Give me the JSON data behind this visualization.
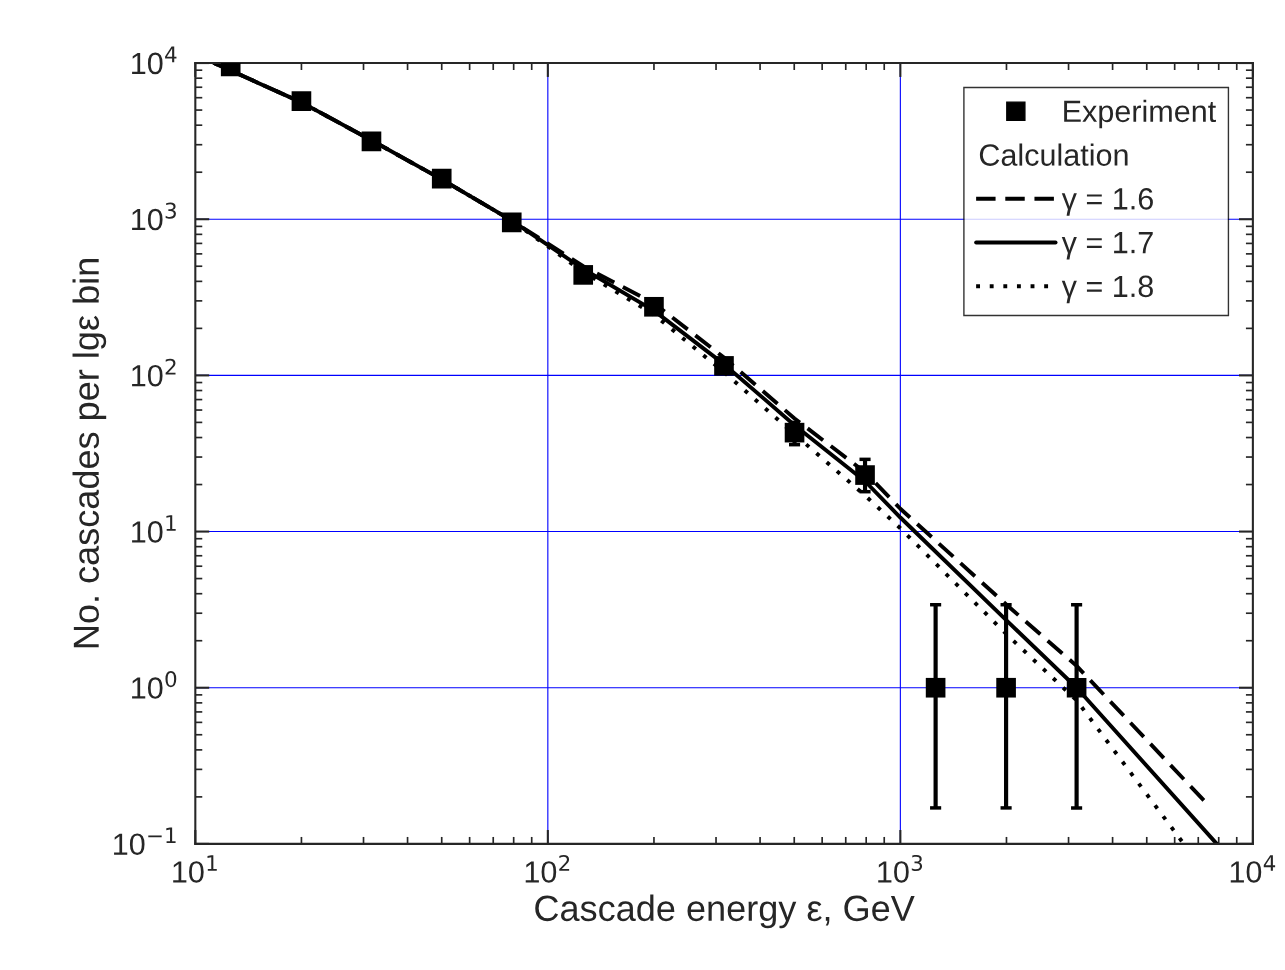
{
  "chart_data": {
    "type": "line",
    "xlabel": "Cascade energy ε, GeV",
    "ylabel": "No. cascades per lgε bin",
    "log": "xy",
    "grid": true,
    "legend": "top right",
    "xlim": [
      10,
      10000
    ],
    "ylim": [
      0.1,
      10000
    ],
    "xticks": [
      {
        "value": 10,
        "label": "10$^{1}$"
      },
      {
        "value": 100,
        "label": "10$^{2}$"
      },
      {
        "value": 1000,
        "label": "10$^{3}$"
      },
      {
        "value": 10000,
        "label": "10$^{4}$"
      }
    ],
    "yticks": [
      {
        "value": 0.1,
        "label": "10$^{−1}$"
      },
      {
        "value": 1,
        "label": "10$^{0}$"
      },
      {
        "value": 10,
        "label": "10$^{1}$"
      },
      {
        "value": 100,
        "label": "10$^{2}$"
      },
      {
        "value": 1000,
        "label": "10$^{3}$"
      },
      {
        "value": 10000,
        "label": "10$^{4}$"
      }
    ],
    "annotations": [
      "Calculation"
    ],
    "series": [
      {
        "name": "Experiment",
        "type": "scatter",
        "marker": "square",
        "color": "#000000",
        "x": [
          12.6,
          20,
          31.6,
          50,
          79,
          126,
          200,
          316,
          501,
          794,
          1259,
          1995,
          3162
        ],
        "values": [
          9500,
          5700,
          3150,
          1820,
          955,
          440,
          275,
          115,
          43,
          23,
          1,
          1,
          1
        ],
        "errors": [
          null,
          null,
          null,
          null,
          null,
          null,
          null,
          null,
          [
            36,
            50
          ],
          [
            18,
            29
          ],
          [
            0.17,
            3.4
          ],
          [
            0.17,
            3.4
          ],
          [
            0.17,
            3.4
          ]
        ]
      },
      {
        "name": "γ = 1.6",
        "line_style": "dashed",
        "color": "#000000",
        "x": [
          11.3,
          20,
          31.6,
          50,
          79,
          126,
          200,
          316,
          501,
          794,
          1000,
          2000,
          3162,
          7260
        ],
        "values": [
          10000,
          5600,
          3200,
          1800,
          980,
          500,
          290,
          130,
          53,
          24,
          14,
          3.4,
          1.38,
          0.19
        ]
      },
      {
        "name": "γ = 1.7",
        "line_style": "solid",
        "color": "#000000",
        "x": [
          11.3,
          20,
          31.6,
          50,
          79,
          126,
          200,
          316,
          501,
          794,
          1000,
          2000,
          3162,
          7900
        ],
        "values": [
          10000,
          5600,
          3200,
          1800,
          980,
          480,
          260,
          118,
          48,
          21,
          12.3,
          2.7,
          1.0,
          0.1
        ]
      },
      {
        "name": "γ = 1.8",
        "line_style": "dotted",
        "color": "#000000",
        "x": [
          11.3,
          20,
          31.6,
          50,
          79,
          126,
          200,
          316,
          501,
          794,
          1000,
          2000,
          3162,
          6370
        ],
        "values": [
          10000,
          5600,
          3200,
          1800,
          980,
          460,
          245,
          105,
          42,
          17,
          10.5,
          2.2,
          0.83,
          0.1
        ]
      }
    ]
  }
}
